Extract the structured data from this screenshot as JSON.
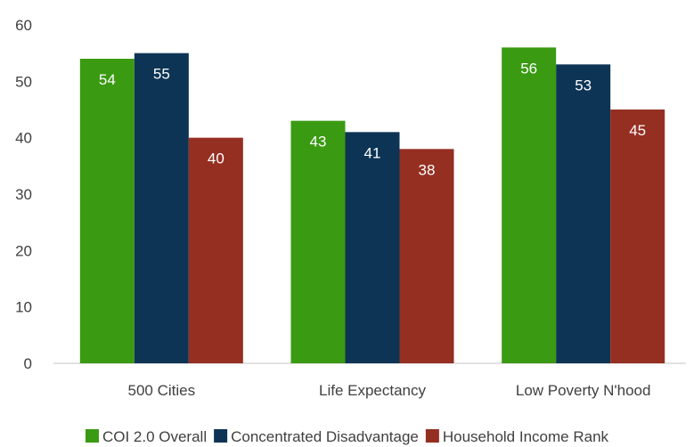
{
  "chart_data": {
    "type": "bar",
    "categories": [
      "500 Cities",
      "Life Expectancy",
      "Low Poverty N'hood"
    ],
    "series": [
      {
        "name": "COI 2.0 Overall",
        "color": "#3a9a12",
        "values": [
          54,
          43,
          56
        ],
        "labels": [
          "54",
          "43",
          "56"
        ]
      },
      {
        "name": "Concentrated Disadvantage",
        "color": "#0d3455",
        "values": [
          55,
          41,
          53
        ],
        "labels": [
          "55",
          "41",
          "53"
        ]
      },
      {
        "name": "Household Income Rank",
        "color": "#952f22",
        "values": [
          40,
          38,
          45
        ],
        "labels": [
          "40",
          "38",
          "45"
        ]
      }
    ],
    "ylim": [
      0,
      60
    ],
    "yticks": [
      "0",
      "10",
      "20",
      "30",
      "40",
      "50",
      "60"
    ],
    "grid": false,
    "legend": "bottom",
    "axis_color": "#d9d9d9"
  }
}
